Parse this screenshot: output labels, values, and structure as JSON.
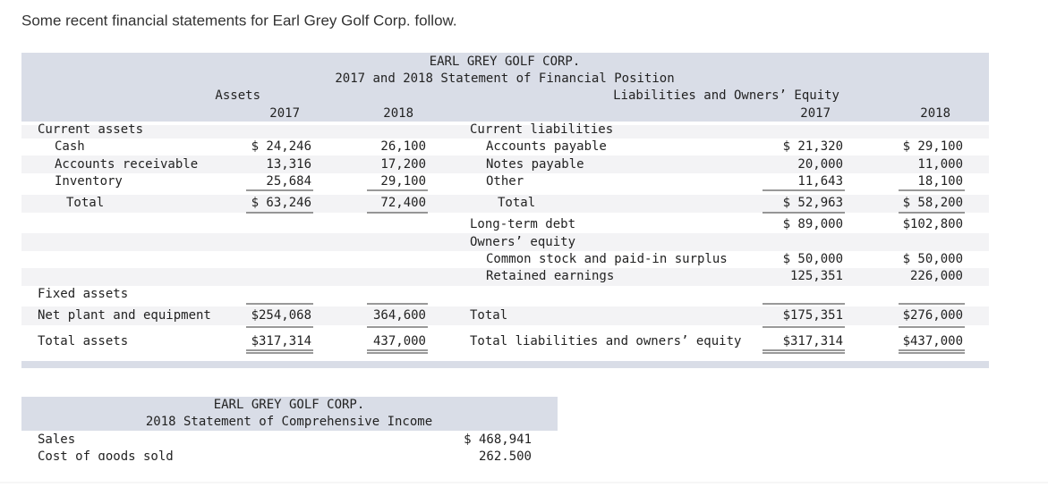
{
  "intro": "Some recent financial statements for Earl Grey Golf Corp. follow.",
  "balance_sheet": {
    "title": "EARL GREY GOLF CORP.",
    "subtitle": "2017 and 2018 Statement of Financial Position",
    "assets_header": "Assets",
    "liabilities_header": "Liabilities and Owners’ Equity",
    "years": [
      "2017",
      "2018"
    ],
    "rows": [
      {
        "left": "Current assets",
        "right": "Current liabilities"
      },
      {
        "left": "Cash",
        "a2017": "$ 24,246",
        "a2018": "26,100",
        "right": "Accounts payable",
        "l2017": "$ 21,320",
        "l2018": "$ 29,100"
      },
      {
        "left": "Accounts receivable",
        "a2017": "13,316",
        "a2018": "17,200",
        "right": "Notes payable",
        "l2017": "20,000",
        "l2018": "11,000"
      },
      {
        "left": "Inventory",
        "a2017": "25,684",
        "a2018": "29,100",
        "right": "Other",
        "l2017": "11,643",
        "l2018": "18,100"
      },
      {
        "left": "Total",
        "a2017": "$ 63,246",
        "a2018": "72,400",
        "right": "Total",
        "l2017": "$ 52,963",
        "l2018": "$ 58,200"
      },
      {
        "right": "Long-term debt",
        "l2017": "$ 89,000",
        "l2018": "$102,800"
      },
      {
        "right": "Owners’ equity"
      },
      {
        "right": "Common stock and paid-in surplus",
        "l2017": "$ 50,000",
        "l2018": "$ 50,000"
      },
      {
        "right": "Retained earnings",
        "l2017": "125,351",
        "l2018": "226,000"
      },
      {
        "left": "Fixed assets"
      },
      {
        "left": "Net plant and equipment",
        "a2017": "$254,068",
        "a2018": "364,600",
        "right": "Total",
        "l2017": "$175,351",
        "l2018": "$276,000"
      },
      {
        "left": "Total assets",
        "a2017": "$317,314",
        "a2018": "437,000",
        "right": "Total liabilities and owners’ equity",
        "l2017": "$317,314",
        "l2018": "$437,000"
      }
    ]
  },
  "income_statement": {
    "title": "EARL GREY GOLF CORP.",
    "subtitle": "2018 Statement of Comprehensive Income",
    "rows": [
      {
        "label": "Sales",
        "value": "$ 468,941"
      },
      {
        "label": "Cost of goods sold",
        "value": "262,500"
      }
    ]
  }
}
